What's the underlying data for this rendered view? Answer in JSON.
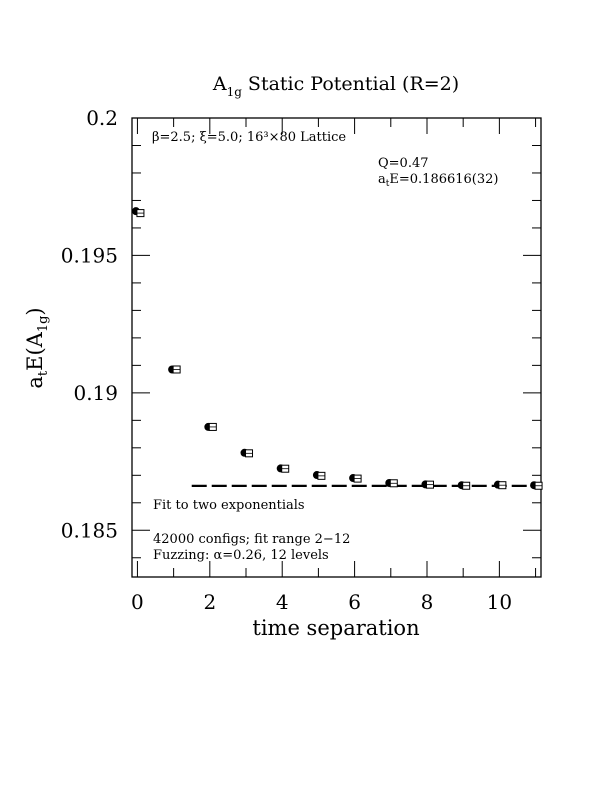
{
  "chart_data": {
    "type": "scatter",
    "title_main": "A",
    "title_sub": "1g",
    "title_rest": " Static Potential (R=2)",
    "xlabel": "time separation",
    "ylabel_main": "a",
    "ylabel_t": "t",
    "ylabel_mid": "E(A",
    "ylabel_sub": "1g",
    "ylabel_end": ")",
    "xlim": [
      -0.15,
      11.15
    ],
    "ylim": [
      0.1833,
      0.2
    ],
    "x_ticks": [
      0,
      2,
      4,
      6,
      8,
      10
    ],
    "x_tick_labels": [
      "0",
      "2",
      "4",
      "6",
      "8",
      "10"
    ],
    "y_ticks": [
      0.185,
      0.19,
      0.195,
      0.2
    ],
    "y_tick_labels": [
      "0.185",
      "0.19",
      "0.195",
      "0.2"
    ],
    "series": [
      {
        "marker": "filled-circle",
        "x": [
          0,
          1,
          2,
          3,
          4,
          5,
          6,
          7,
          8,
          9,
          10,
          11
        ],
        "y": [
          0.19661,
          0.19085,
          0.18876,
          0.18782,
          0.18725,
          0.18701,
          0.1869,
          0.18672,
          0.18667,
          0.18664,
          0.18666,
          0.18664
        ]
      },
      {
        "marker": "open-square",
        "x": [
          0,
          1,
          2,
          3,
          4,
          5,
          6,
          7,
          8,
          9,
          10,
          11
        ],
        "y": [
          0.19654,
          0.19085,
          0.18876,
          0.1878,
          0.18724,
          0.18698,
          0.18688,
          0.18671,
          0.18666,
          0.18662,
          0.18664,
          0.18662
        ]
      }
    ],
    "fit_line": {
      "x": [
        1.5,
        11.15
      ],
      "y": 0.186616,
      "style": "dashed"
    },
    "annotations": {
      "lattice": "β=2.5; ξ=5.0; 16³×80 Lattice",
      "q": "Q=0.47",
      "energy_prefix": "a",
      "energy_sub": "t",
      "energy_rest": "E=0.186616(32)",
      "fit": "Fit to two exponentials",
      "configs": "42000 configs; fit range 2−12",
      "fuzzing": "Fuzzing: α=0.26, 12 levels"
    }
  }
}
